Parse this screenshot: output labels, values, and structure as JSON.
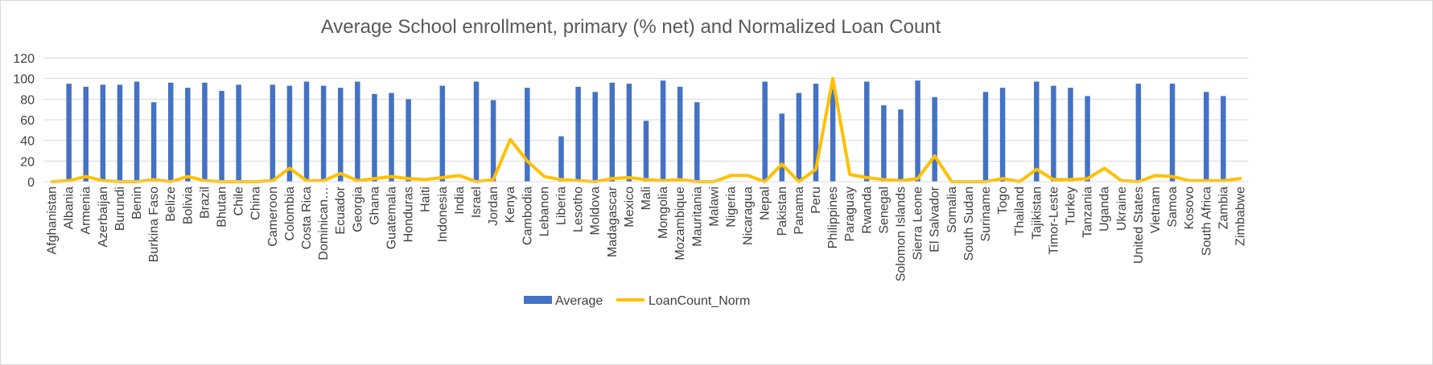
{
  "chart_data": {
    "type": "bar",
    "title": "Average School enrollment, primary (% net) and Normalized Loan Count",
    "ylim": [
      0,
      120
    ],
    "yticks": [
      0,
      20,
      40,
      60,
      80,
      100,
      120
    ],
    "grid": true,
    "legend_position": "bottom",
    "categories": [
      "Afghanistan",
      "Albania",
      "Armenia",
      "Azerbaijan",
      "Burundi",
      "Benin",
      "Burkina Faso",
      "Belize",
      "Bolivia",
      "Brazil",
      "Bhutan",
      "Chile",
      "China",
      "Cameroon",
      "Colombia",
      "Costa Rica",
      "Dominican…",
      "Ecuador",
      "Georgia",
      "Ghana",
      "Guatemala",
      "Honduras",
      "Haiti",
      "Indonesia",
      "India",
      "Israel",
      "Jordan",
      "Kenya",
      "Cambodia",
      "Lebanon",
      "Liberia",
      "Lesotho",
      "Moldova",
      "Madagascar",
      "Mexico",
      "Mali",
      "Mongolia",
      "Mozambique",
      "Mauritania",
      "Malawi",
      "Nigeria",
      "Nicaragua",
      "Nepal",
      "Pakistan",
      "Panama",
      "Peru",
      "Philippines",
      "Paraguay",
      "Rwanda",
      "Senegal",
      "Solomon Islands",
      "Sierra Leone",
      "El Salvador",
      "Somalia",
      "South Sudan",
      "Suriname",
      "Togo",
      "Thailand",
      "Tajikistan",
      "Timor-Leste",
      "Turkey",
      "Tanzania",
      "Uganda",
      "Ukraine",
      "United States",
      "Vietnam",
      "Samoa",
      "Kosovo",
      "South Africa",
      "Zambia",
      "Zimbabwe"
    ],
    "series": [
      {
        "name": "Average",
        "type": "bar",
        "color": "#4472C4",
        "values": [
          null,
          95,
          92,
          94,
          94,
          97,
          77,
          96,
          91,
          96,
          88,
          94,
          null,
          94,
          93,
          97,
          93,
          91,
          97,
          85,
          86,
          80,
          null,
          93,
          null,
          97,
          79,
          null,
          91,
          null,
          44,
          92,
          87,
          96,
          95,
          59,
          98,
          92,
          77,
          null,
          null,
          null,
          97,
          66,
          86,
          95,
          90,
          null,
          97,
          74,
          70,
          98,
          82,
          null,
          null,
          87,
          91,
          null,
          97,
          93,
          91,
          83,
          null,
          null,
          95,
          null,
          95,
          null,
          87,
          83,
          null
        ]
      },
      {
        "name": "LoanCount_Norm",
        "type": "line",
        "color": "#FFC000",
        "values": [
          0,
          1,
          5,
          1,
          0,
          0,
          2,
          0,
          5,
          1,
          0,
          0,
          0,
          1,
          13,
          1,
          1,
          8,
          1,
          3,
          5,
          3,
          2,
          4,
          6,
          0,
          2,
          41,
          20,
          5,
          2,
          1,
          0,
          3,
          4,
          2,
          1,
          2,
          0,
          0,
          6,
          6,
          0,
          17,
          0,
          12,
          100,
          7,
          4,
          2,
          1,
          3,
          25,
          0,
          0,
          0,
          3,
          0,
          12,
          2,
          2,
          3,
          13,
          1,
          0,
          6,
          5,
          1,
          1,
          1,
          3
        ]
      }
    ]
  }
}
